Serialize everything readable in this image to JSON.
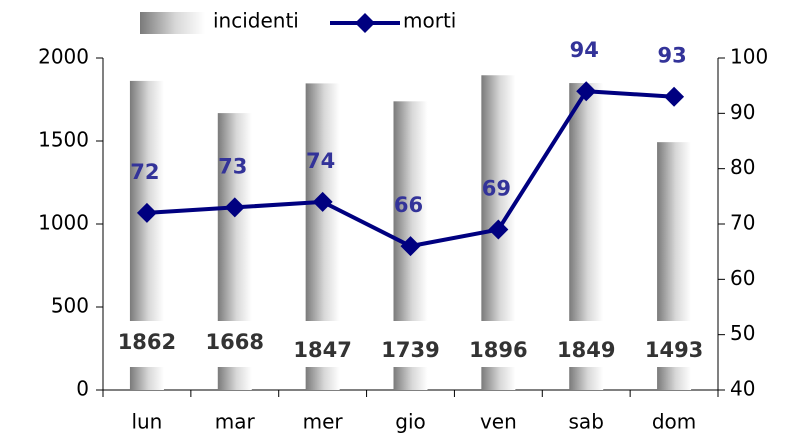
{
  "chart_data": {
    "type": "bar",
    "categories": [
      "lun",
      "mar",
      "mer",
      "gio",
      "ven",
      "sab",
      "dom"
    ],
    "series": [
      {
        "name": "incidenti",
        "type": "bar",
        "color": "#808080",
        "values": [
          1862,
          1668,
          1847,
          1739,
          1896,
          1849,
          1493
        ]
      },
      {
        "name": "morti",
        "type": "line",
        "axis": "y2",
        "color": "#000080",
        "label_color": "#333399",
        "values": [
          72,
          73,
          74,
          66,
          69,
          94,
          93
        ]
      }
    ],
    "ylim": [
      0,
      2000
    ],
    "yticks": [
      0,
      500,
      1000,
      1500,
      2000
    ],
    "y2lim": [
      40,
      100
    ],
    "y2ticks": [
      40,
      50,
      60,
      70,
      80,
      90,
      100
    ],
    "legend": "top"
  }
}
